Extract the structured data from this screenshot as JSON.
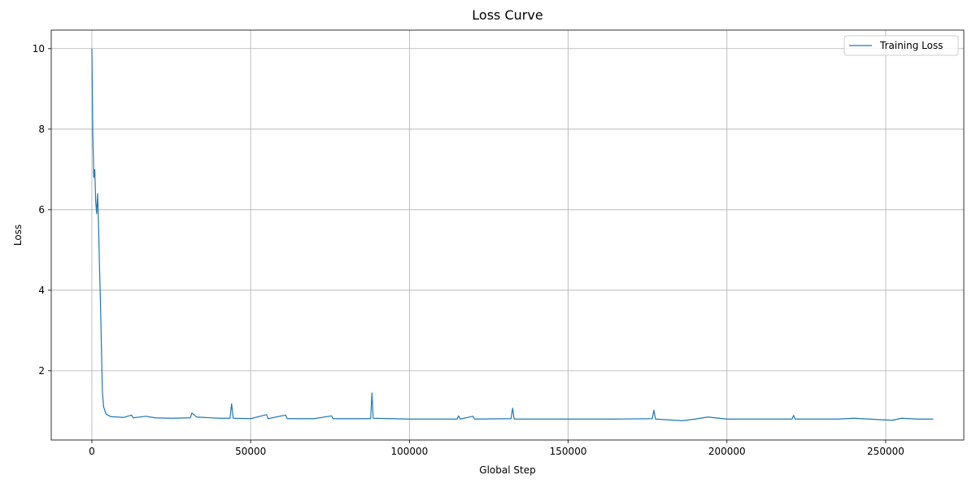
{
  "chart_data": {
    "type": "line",
    "title": "Loss Curve",
    "x_label": "Global Step",
    "y_label": "Loss",
    "x": [
      0,
      300,
      600,
      900,
      1200,
      1500,
      1800,
      2100,
      2400,
      2700,
      3000,
      3300,
      3700,
      4500,
      6000,
      8000,
      10000,
      12500,
      13000,
      17000,
      20000,
      25000,
      31000,
      31500,
      33000,
      40000,
      43500,
      44000,
      44500,
      50000,
      55000,
      55500,
      61000,
      61500,
      70000,
      75500,
      76000,
      87800,
      88200,
      88600,
      100000,
      115000,
      115500,
      116000,
      120000,
      120500,
      132000,
      132500,
      133000,
      150000,
      165000,
      176500,
      177000,
      177500,
      186000,
      190000,
      194000,
      200000,
      210000,
      220500,
      221000,
      221500,
      235000,
      240000,
      252000,
      255000,
      260000,
      265000
    ],
    "series": [
      {
        "name": "Training Loss",
        "color": "#1f77b4",
        "values": [
          10.0,
          7.8,
          6.8,
          7.0,
          6.2,
          5.9,
          6.4,
          5.6,
          4.6,
          3.7,
          2.6,
          1.5,
          1.1,
          0.92,
          0.86,
          0.85,
          0.84,
          0.9,
          0.83,
          0.87,
          0.83,
          0.82,
          0.83,
          0.95,
          0.85,
          0.82,
          0.82,
          1.18,
          0.82,
          0.81,
          0.91,
          0.81,
          0.9,
          0.81,
          0.81,
          0.88,
          0.81,
          0.81,
          1.45,
          0.82,
          0.8,
          0.8,
          0.88,
          0.8,
          0.87,
          0.8,
          0.81,
          1.07,
          0.8,
          0.8,
          0.8,
          0.81,
          1.02,
          0.8,
          0.76,
          0.8,
          0.85,
          0.8,
          0.8,
          0.8,
          0.89,
          0.8,
          0.8,
          0.82,
          0.77,
          0.82,
          0.8,
          0.8
        ]
      }
    ],
    "xlim": [
      -12800,
      274600
    ],
    "ylim": [
      0.28,
      10.46
    ],
    "xticks": [
      0,
      50000,
      100000,
      150000,
      200000,
      250000
    ],
    "yticks": [
      2,
      4,
      6,
      8,
      10
    ],
    "grid": true,
    "legend": "upper right"
  }
}
